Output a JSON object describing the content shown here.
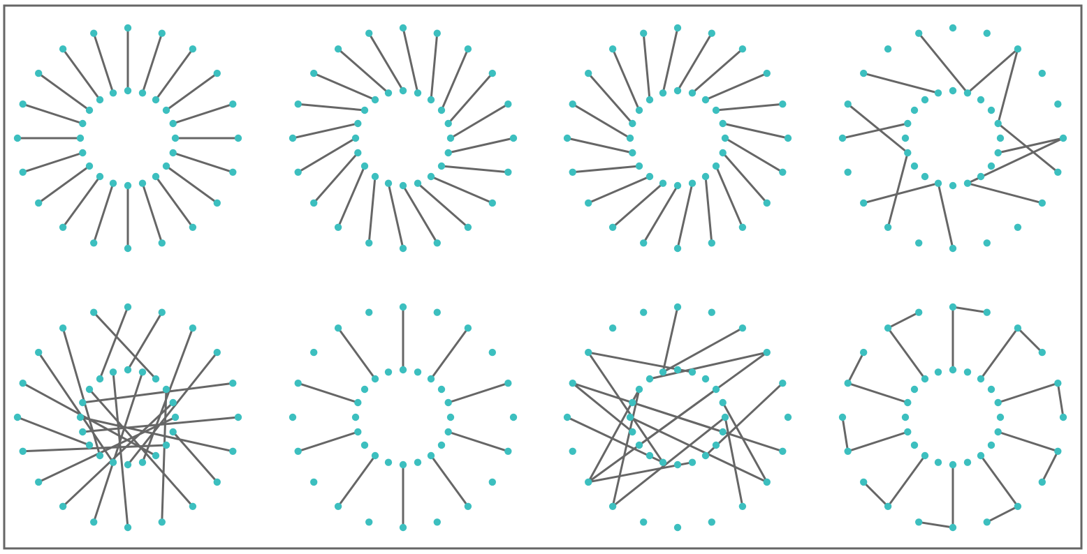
{
  "colors": {
    "node": "#3cbfbf",
    "edge": "#666666",
    "frame": "#666666",
    "background": "#ffffff"
  },
  "panels": [
    {
      "label": "",
      "inner_nodes": 20,
      "outer_nodes": 20,
      "edges": [
        [
          0,
          0
        ],
        [
          1,
          1
        ],
        [
          2,
          2
        ],
        [
          3,
          3
        ],
        [
          4,
          4
        ],
        [
          5,
          5
        ],
        [
          6,
          6
        ],
        [
          7,
          7
        ],
        [
          8,
          8
        ],
        [
          9,
          9
        ],
        [
          10,
          10
        ],
        [
          11,
          11
        ],
        [
          12,
          12
        ],
        [
          13,
          13
        ],
        [
          14,
          14
        ],
        [
          15,
          15
        ],
        [
          16,
          16
        ],
        [
          17,
          17
        ],
        [
          18,
          18
        ],
        [
          19,
          19
        ]
      ]
    },
    {
      "label": "",
      "inner_nodes": 20,
      "outer_nodes": 20,
      "edges": [
        [
          0,
          19
        ],
        [
          1,
          0
        ],
        [
          2,
          1
        ],
        [
          3,
          2
        ],
        [
          4,
          3
        ],
        [
          5,
          4
        ],
        [
          6,
          5
        ],
        [
          7,
          6
        ],
        [
          8,
          7
        ],
        [
          9,
          8
        ],
        [
          10,
          9
        ],
        [
          11,
          10
        ],
        [
          12,
          11
        ],
        [
          13,
          12
        ],
        [
          14,
          13
        ],
        [
          15,
          14
        ],
        [
          16,
          15
        ],
        [
          17,
          16
        ],
        [
          18,
          17
        ],
        [
          19,
          18
        ]
      ]
    },
    {
      "label": "",
      "inner_nodes": 20,
      "outer_nodes": 20,
      "edges": [
        [
          0,
          1
        ],
        [
          1,
          2
        ],
        [
          2,
          3
        ],
        [
          3,
          4
        ],
        [
          4,
          5
        ],
        [
          5,
          6
        ],
        [
          6,
          7
        ],
        [
          7,
          8
        ],
        [
          8,
          9
        ],
        [
          9,
          10
        ],
        [
          10,
          11
        ],
        [
          11,
          12
        ],
        [
          12,
          13
        ],
        [
          13,
          14
        ],
        [
          14,
          15
        ],
        [
          15,
          16
        ],
        [
          16,
          17
        ],
        [
          17,
          18
        ],
        [
          18,
          19
        ],
        [
          19,
          0
        ]
      ]
    },
    {
      "label": "",
      "inner_nodes": 20,
      "outer_nodes": 20,
      "edges": [
        [
          1,
          2
        ],
        [
          1,
          19
        ],
        [
          4,
          2
        ],
        [
          4,
          6
        ],
        [
          6,
          5
        ],
        [
          9,
          5
        ],
        [
          9,
          7
        ],
        [
          11,
          10
        ],
        [
          11,
          13
        ],
        [
          14,
          12
        ],
        [
          14,
          16
        ],
        [
          16,
          15
        ],
        [
          19,
          17
        ]
      ]
    },
    {
      "label": "",
      "inner_nodes": 20,
      "outer_nodes": 20,
      "edges": [
        [
          0,
          1
        ],
        [
          1,
          11
        ],
        [
          2,
          19
        ],
        [
          3,
          9
        ],
        [
          4,
          12
        ],
        [
          5,
          13
        ],
        [
          6,
          7
        ],
        [
          7,
          14
        ],
        [
          8,
          16
        ],
        [
          9,
          2
        ],
        [
          10,
          3
        ],
        [
          11,
          17
        ],
        [
          12,
          18
        ],
        [
          13,
          15
        ],
        [
          14,
          5
        ],
        [
          15,
          6
        ],
        [
          16,
          4
        ],
        [
          17,
          8
        ],
        [
          18,
          0
        ],
        [
          19,
          10
        ]
      ]
    },
    {
      "label": "",
      "inner_nodes": 20,
      "outer_nodes": 20,
      "edges": [
        [
          0,
          0
        ],
        [
          2,
          2
        ],
        [
          4,
          4
        ],
        [
          6,
          6
        ],
        [
          8,
          8
        ],
        [
          10,
          10
        ],
        [
          12,
          12
        ],
        [
          14,
          14
        ],
        [
          16,
          16
        ],
        [
          18,
          18
        ]
      ]
    },
    {
      "label": "",
      "inner_nodes": 20,
      "outer_nodes": 20,
      "edges": [
        [
          1,
          17
        ],
        [
          3,
          13
        ],
        [
          4,
          7
        ],
        [
          5,
          8
        ],
        [
          5,
          12
        ],
        [
          6,
          16
        ],
        [
          8,
          4
        ],
        [
          9,
          13
        ],
        [
          11,
          15
        ],
        [
          11,
          17
        ],
        [
          13,
          3
        ],
        [
          14,
          16
        ],
        [
          15,
          7
        ],
        [
          16,
          6
        ],
        [
          17,
          12
        ],
        [
          17,
          13
        ],
        [
          18,
          3
        ],
        [
          19,
          0
        ],
        [
          19,
          2
        ]
      ]
    },
    {
      "label": "",
      "inner_nodes": 20,
      "outer_nodes": 20,
      "edges": [
        [
          0,
          0
        ],
        [
          2,
          2
        ],
        [
          4,
          4
        ],
        [
          6,
          6
        ],
        [
          8,
          8
        ],
        [
          10,
          10
        ],
        [
          12,
          12
        ],
        [
          14,
          14
        ],
        [
          16,
          16
        ],
        [
          18,
          18
        ]
      ],
      "outer_edges": [
        [
          0,
          1
        ],
        [
          2,
          3
        ],
        [
          4,
          5
        ],
        [
          6,
          7
        ],
        [
          8,
          9
        ],
        [
          10,
          11
        ],
        [
          12,
          13
        ],
        [
          14,
          15
        ],
        [
          16,
          17
        ],
        [
          18,
          19
        ]
      ]
    }
  ]
}
